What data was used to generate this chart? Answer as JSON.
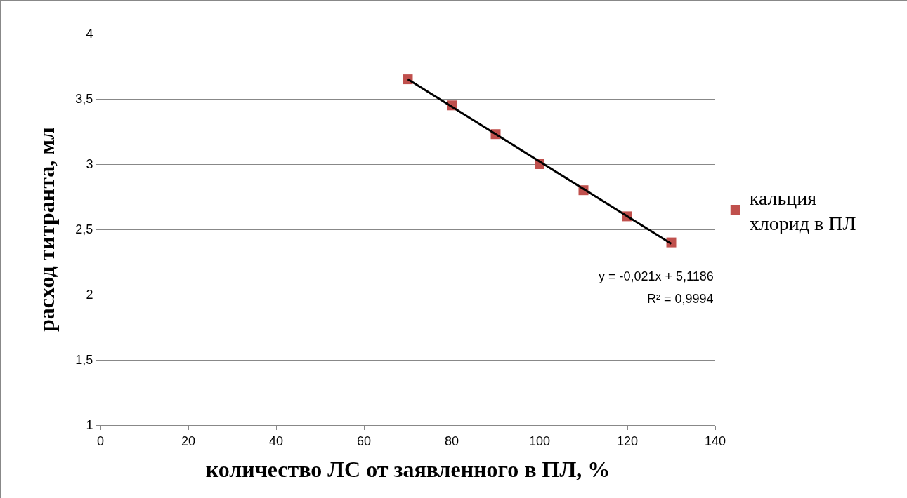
{
  "chart_data": {
    "type": "scatter",
    "xlabel": "количество ЛС от заявленного в ПЛ, %",
    "ylabel": "расход титранта, мл",
    "x": [
      70,
      80,
      90,
      100,
      110,
      120,
      130
    ],
    "series": [
      {
        "name": "кальция хлорид в ПЛ",
        "color": "#c0504d",
        "values": [
          3.65,
          3.45,
          3.23,
          3.0,
          2.8,
          2.6,
          2.4
        ]
      },
      {
        "type": "line",
        "color": "#000000",
        "marker": "none",
        "x": [
          70,
          130
        ],
        "values": [
          3.65,
          2.39
        ]
      }
    ],
    "annotations": [
      "y = -0,021x + 5,1186",
      "R² = 0,9994"
    ],
    "xlim": [
      0,
      140
    ],
    "xticks": [
      0,
      20,
      40,
      60,
      80,
      100,
      120,
      140
    ],
    "ylim": [
      1,
      4
    ],
    "yticks": [
      {
        "value": 1,
        "label": "1"
      },
      {
        "value": 1.5,
        "label": "1,5"
      },
      {
        "value": 2,
        "label": "2"
      },
      {
        "value": 2.5,
        "label": "2,5"
      },
      {
        "value": 3,
        "label": "3"
      },
      {
        "value": 3.5,
        "label": "3,5"
      },
      {
        "value": 4,
        "label": "4"
      }
    ],
    "grid": "y",
    "legend": "right",
    "marker": "square"
  }
}
